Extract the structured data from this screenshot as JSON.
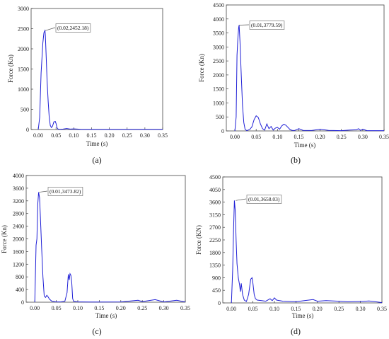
{
  "chart_data": [
    {
      "id": "a",
      "type": "line",
      "caption": "(a)",
      "xlabel": "Time (s)",
      "ylabel": "Force (Kn)",
      "xlim": [
        -0.02,
        0.35
      ],
      "ylim": [
        0,
        3000
      ],
      "xticks": [
        0.0,
        0.05,
        0.1,
        0.15,
        0.2,
        0.25,
        0.3,
        0.35
      ],
      "xtick_labels": [
        "0.00",
        "0.05",
        "0.10",
        "0.15",
        "0.20",
        "0.25",
        "0.30",
        "0.35"
      ],
      "yticks": [
        0,
        500,
        1000,
        1500,
        2000,
        2500,
        3000
      ],
      "ytick_labels": [
        "0",
        "500",
        "1000",
        "1500",
        "2000",
        "2500",
        "3000"
      ],
      "annotation": {
        "text": "(0.02,2452.18)",
        "x": 0.02,
        "y": 2452.18
      },
      "line_color": "#1f1fd6",
      "series": [
        {
          "x": [
            0.0,
            0.004,
            0.008,
            0.01,
            0.013,
            0.016,
            0.019,
            0.02,
            0.022,
            0.025,
            0.028,
            0.031,
            0.034,
            0.037,
            0.04,
            0.044,
            0.048,
            0.05,
            0.053,
            0.056,
            0.06,
            0.07,
            0.08,
            0.09,
            0.1,
            0.11,
            0.12,
            0.15,
            0.2,
            0.25,
            0.3,
            0.35
          ],
          "y": [
            0,
            300,
            1400,
            1700,
            2150,
            2400,
            2452,
            2350,
            1900,
            1200,
            700,
            300,
            100,
            50,
            80,
            190,
            200,
            150,
            40,
            10,
            5,
            10,
            25,
            10,
            15,
            10,
            5,
            5,
            5,
            5,
            5,
            5
          ]
        }
      ]
    },
    {
      "id": "b",
      "type": "line",
      "caption": "(b)",
      "xlabel": "Time (s)",
      "ylabel": "Force (Kn)",
      "xlim": [
        -0.02,
        0.35
      ],
      "ylim": [
        0,
        4500
      ],
      "xticks": [
        0.0,
        0.05,
        0.1,
        0.15,
        0.2,
        0.25,
        0.3,
        0.35
      ],
      "xtick_labels": [
        "0.00",
        "0.05",
        "0.10",
        "0.15",
        "0.20",
        "0.25",
        "0.30",
        "0.35"
      ],
      "yticks": [
        0,
        500,
        1000,
        1500,
        2000,
        2500,
        3000,
        3500,
        4000,
        4500
      ],
      "ytick_labels": [
        "0",
        "500",
        "1000",
        "1500",
        "2000",
        "2500",
        "3000",
        "3500",
        "4000",
        "4500"
      ],
      "annotation": {
        "text": "(0.01,3779.59)",
        "x": 0.01,
        "y": 3779.59
      },
      "line_color": "#1f1fd6",
      "series": [
        {
          "x": [
            0.0,
            0.003,
            0.005,
            0.007,
            0.009,
            0.01,
            0.012,
            0.015,
            0.018,
            0.021,
            0.024,
            0.028,
            0.035,
            0.04,
            0.045,
            0.05,
            0.055,
            0.06,
            0.065,
            0.07,
            0.075,
            0.08,
            0.085,
            0.09,
            0.095,
            0.1,
            0.105,
            0.11,
            0.115,
            0.12,
            0.125,
            0.13,
            0.135,
            0.14,
            0.15,
            0.16,
            0.18,
            0.2,
            0.22,
            0.25,
            0.27,
            0.285,
            0.29,
            0.295,
            0.3,
            0.31,
            0.35
          ],
          "y": [
            0,
            500,
            2700,
            3300,
            3700,
            3779,
            3200,
            2000,
            900,
            300,
            60,
            10,
            50,
            150,
            400,
            540,
            480,
            250,
            80,
            30,
            250,
            80,
            160,
            30,
            100,
            130,
            60,
            180,
            240,
            200,
            120,
            40,
            20,
            15,
            80,
            20,
            15,
            60,
            20,
            10,
            30,
            40,
            80,
            20,
            60,
            10,
            10
          ]
        }
      ]
    },
    {
      "id": "c",
      "type": "line",
      "caption": "(c)",
      "xlabel": "Time (s)",
      "ylabel": "Force (Kn)",
      "xlim": [
        -0.02,
        0.35
      ],
      "ylim": [
        0,
        4000
      ],
      "xticks": [
        0.0,
        0.05,
        0.1,
        0.15,
        0.2,
        0.25,
        0.3,
        0.35
      ],
      "xtick_labels": [
        "0.00",
        "0.05",
        "0.10",
        "0.15",
        "0.20",
        "0.25",
        "0.30",
        "0.35"
      ],
      "yticks": [
        0,
        400,
        800,
        1200,
        1600,
        2000,
        2400,
        2800,
        3200,
        3600,
        4000
      ],
      "ytick_labels": [
        "0",
        "400",
        "800",
        "1200",
        "1600",
        "2000",
        "2400",
        "2800",
        "3200",
        "3600",
        "4000"
      ],
      "annotation": {
        "text": "(0.01,3473.82)",
        "x": 0.01,
        "y": 3473.82
      },
      "line_color": "#1f1fd6",
      "series": [
        {
          "x": [
            0.0,
            0.003,
            0.005,
            0.007,
            0.009,
            0.011,
            0.013,
            0.016,
            0.019,
            0.022,
            0.025,
            0.028,
            0.031,
            0.034,
            0.037,
            0.04,
            0.045,
            0.05,
            0.06,
            0.07,
            0.075,
            0.078,
            0.08,
            0.082,
            0.084,
            0.086,
            0.088,
            0.09,
            0.095,
            0.1,
            0.11,
            0.15,
            0.2,
            0.24,
            0.25,
            0.28,
            0.3,
            0.33,
            0.35
          ],
          "y": [
            0,
            1800,
            2000,
            3100,
            3473,
            3300,
            2700,
            1700,
            800,
            200,
            150,
            220,
            170,
            100,
            60,
            30,
            20,
            10,
            10,
            30,
            300,
            880,
            700,
            900,
            850,
            600,
            120,
            30,
            20,
            10,
            10,
            5,
            10,
            60,
            20,
            80,
            10,
            60,
            10
          ]
        }
      ]
    },
    {
      "id": "d",
      "type": "line",
      "caption": "(d)",
      "xlabel": "Time (s)",
      "ylabel": "Force (KN)",
      "xlim": [
        -0.02,
        0.35
      ],
      "ylim": [
        0,
        4500
      ],
      "xticks": [
        0.0,
        0.05,
        0.1,
        0.15,
        0.2,
        0.25,
        0.3,
        0.35
      ],
      "xtick_labels": [
        "0.00",
        "0.05",
        "0.10",
        "0.15",
        "0.20",
        "0.25",
        "0.30",
        "0.35"
      ],
      "yticks": [
        0,
        450,
        900,
        1350,
        1800,
        2250,
        2700,
        3150,
        3600,
        4050,
        4500
      ],
      "ytick_labels": [
        "0",
        "450",
        "900",
        "1350",
        "1800",
        "2250",
        "2700",
        "3150",
        "3600",
        "4050",
        "4500"
      ],
      "annotation": {
        "text": "(0.01,3658.03)",
        "x": 0.01,
        "y": 3658.03
      },
      "line_color": "#1f1fd6",
      "series": [
        {
          "x": [
            0.0,
            0.003,
            0.005,
            0.007,
            0.009,
            0.011,
            0.013,
            0.016,
            0.019,
            0.021,
            0.023,
            0.026,
            0.03,
            0.035,
            0.04,
            0.045,
            0.048,
            0.05,
            0.053,
            0.056,
            0.06,
            0.07,
            0.08,
            0.09,
            0.095,
            0.1,
            0.105,
            0.12,
            0.15,
            0.17,
            0.19,
            0.2,
            0.22,
            0.25,
            0.27,
            0.3,
            0.32,
            0.34,
            0.35
          ],
          "y": [
            0,
            1200,
            2600,
            3658,
            3300,
            2200,
            1400,
            900,
            650,
            400,
            700,
            300,
            100,
            50,
            300,
            850,
            900,
            700,
            300,
            150,
            100,
            80,
            60,
            150,
            80,
            180,
            100,
            60,
            40,
            80,
            120,
            60,
            80,
            60,
            40,
            50,
            70,
            30,
            10
          ]
        }
      ]
    }
  ]
}
